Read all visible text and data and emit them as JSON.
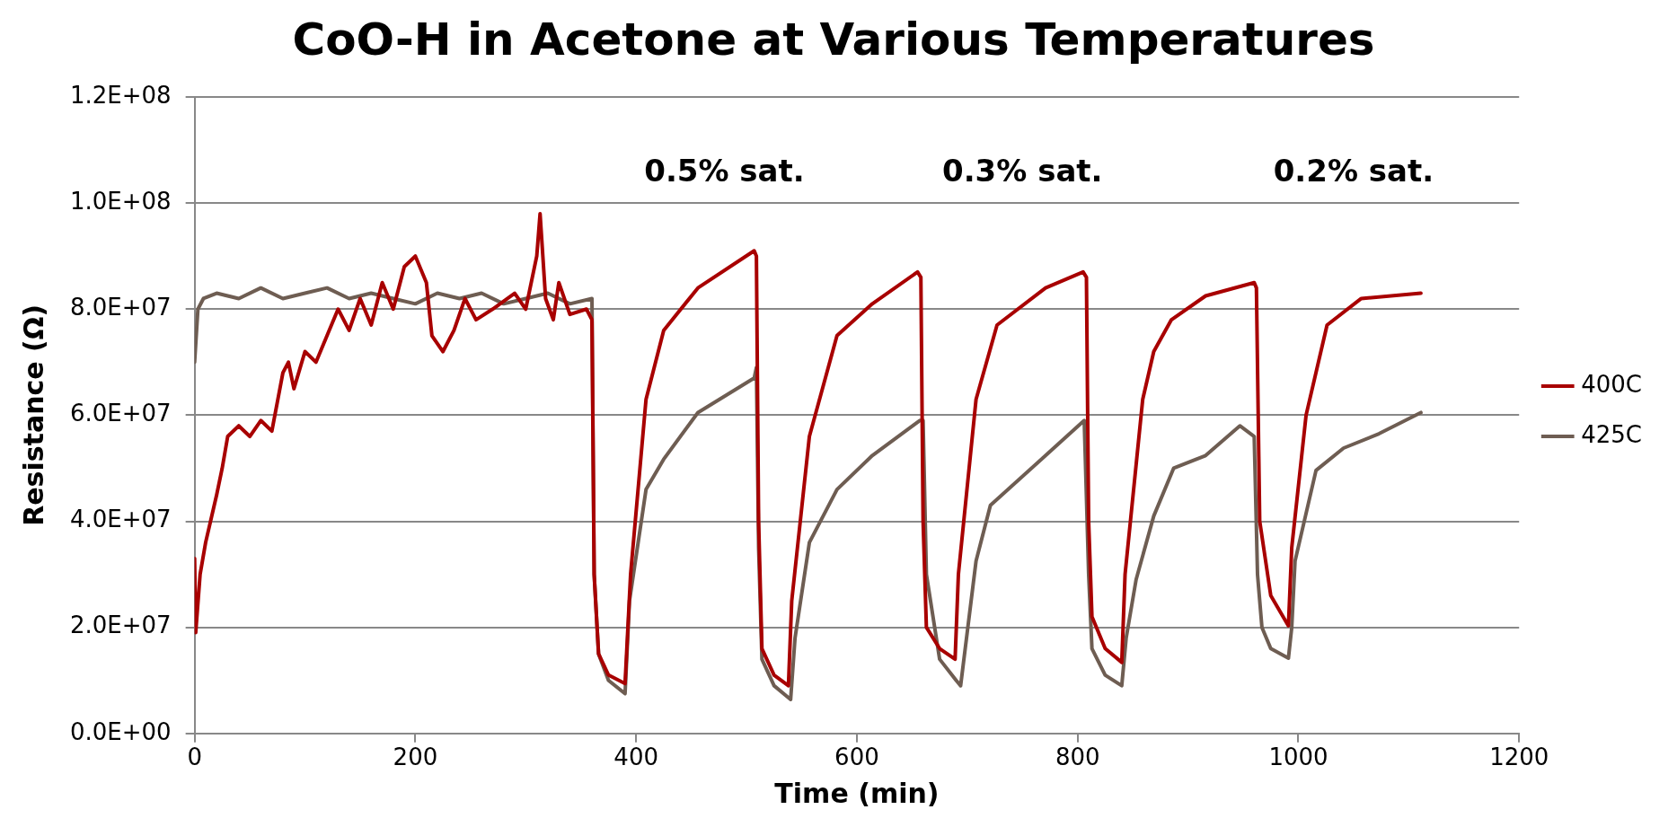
{
  "chart_data": {
    "type": "line",
    "title": "CoO-H in Acetone at Various Temperatures",
    "xlabel": "Time (min)",
    "ylabel": "Resistance (Ω)",
    "xlim": [
      0,
      1200
    ],
    "xticks": [
      0,
      200,
      400,
      600,
      800,
      1000,
      1200
    ],
    "ylim": [
      0,
      120000000.0
    ],
    "yticks": [
      {
        "value": 0,
        "label": "0.0E+00"
      },
      {
        "value": 20000000.0,
        "label": "2.0E+07"
      },
      {
        "value": 40000000.0,
        "label": "4.0E+07"
      },
      {
        "value": 60000000.0,
        "label": "6.0E+07"
      },
      {
        "value": 80000000.0,
        "label": "8.0E+07"
      },
      {
        "value": 100000000.0,
        "label": "1.0E+08"
      },
      {
        "value": 120000000.0,
        "label": "1.2E+08"
      }
    ],
    "grid": "y",
    "legend": "right",
    "marker": "none",
    "line_style": "solid",
    "annotations": [
      "0.5% sat.",
      "0.3% sat.",
      "0.2% sat."
    ],
    "series": [
      {
        "name": "400C",
        "color": "#a80000",
        "x": [
          0,
          1,
          5,
          10,
          20,
          25,
          30,
          40,
          50,
          60,
          70,
          80,
          85,
          90,
          100,
          110,
          120,
          130,
          140,
          150,
          160,
          170,
          180,
          190,
          200,
          210,
          215,
          225,
          235,
          245,
          255,
          270,
          290,
          300,
          310,
          313,
          318,
          325,
          330,
          340,
          355,
          360,
          362,
          366,
          375,
          390,
          395,
          409,
          425,
          456,
          507,
          509,
          511,
          514,
          525,
          538,
          541,
          557,
          582,
          614,
          655,
          658,
          660,
          663,
          675,
          689,
          692,
          708,
          727,
          771,
          805,
          808,
          810,
          813,
          825,
          840,
          843,
          859,
          869,
          885,
          916,
          960,
          962,
          965,
          975,
          991,
          994,
          1007,
          1026,
          1057,
          1111
        ],
        "values": [
          33000000.0,
          19000000.0,
          30000000.0,
          36000000.0,
          45000000.0,
          50000000.0,
          56000000.0,
          58000000.0,
          56000000.0,
          59000000.0,
          57000000.0,
          68000000.0,
          70000000.0,
          65000000.0,
          72000000.0,
          70000000.0,
          75000000.0,
          80000000.0,
          76000000.0,
          82000000.0,
          77000000.0,
          85000000.0,
          80000000.0,
          88000000.0,
          90000000.0,
          85000000.0,
          75000000.0,
          72000000.0,
          76000000.0,
          82000000.0,
          78000000.0,
          80000000.0,
          83000000.0,
          80000000.0,
          90000000.0,
          98000000.0,
          82000000.0,
          78000000.0,
          85000000.0,
          79000000.0,
          80000000.0,
          78000000.0,
          30000000.0,
          15000000.0,
          11000000.0,
          9400000.0,
          30000000.0,
          63000000.0,
          76000000.0,
          84000000.0,
          91000000.0,
          90000000.0,
          40000000.0,
          16000000.0,
          11000000.0,
          9000000.0,
          25000000.0,
          56000000.0,
          75000000.0,
          81000000.0,
          87000000.0,
          86000000.0,
          40000000.0,
          20000000.0,
          16000000.0,
          14000000.0,
          30000000.0,
          63000000.0,
          77000000.0,
          84000000.0,
          87000000.0,
          86000000.0,
          40000000.0,
          22000000.0,
          16000000.0,
          13400000.0,
          30000000.0,
          63000000.0,
          72000000.0,
          78000000.0,
          82500000.0,
          85000000.0,
          84000000.0,
          40000000.0,
          26000000.0,
          20300000.0,
          35000000.0,
          60000000.0,
          77000000.0,
          82000000.0,
          83000000.0
        ]
      },
      {
        "name": "425C",
        "color": "#6e5d52",
        "x": [
          0,
          3,
          8,
          20,
          40,
          60,
          80,
          100,
          120,
          140,
          160,
          180,
          200,
          220,
          240,
          260,
          280,
          300,
          320,
          340,
          360,
          362,
          366,
          375,
          390,
          394,
          409,
          425,
          456,
          507,
          509,
          511,
          514,
          525,
          540,
          544,
          557,
          582,
          614,
          657,
          660,
          663,
          675,
          690,
          694,
          708,
          721,
          771,
          806,
          810,
          813,
          825,
          840,
          844,
          853,
          869,
          887,
          916,
          947,
          960,
          963,
          967,
          975,
          991,
          994,
          997,
          1016,
          1041,
          1073,
          1111
        ],
        "values": [
          70000000.0,
          80000000.0,
          82000000.0,
          83000000.0,
          82000000.0,
          84000000.0,
          82000000.0,
          83000000.0,
          84000000.0,
          82000000.0,
          83000000.0,
          82000000.0,
          81000000.0,
          83000000.0,
          82000000.0,
          83000000.0,
          81000000.0,
          82000000.0,
          83000000.0,
          81000000.0,
          82000000.0,
          30000000.0,
          15000000.0,
          10000000.0,
          7500000.0,
          25000000.0,
          46000000.0,
          51700000.0,
          60500000.0,
          67000000.0,
          69000000.0,
          35000000.0,
          14000000.0,
          9000000.0,
          6400000.0,
          18000000.0,
          36000000.0,
          46000000.0,
          52400000.0,
          59000000.0,
          59000000.0,
          30000000.0,
          14000000.0,
          10000000.0,
          9000000.0,
          32500000.0,
          43000000.0,
          52400000.0,
          59000000.0,
          30000000.0,
          16000000.0,
          11000000.0,
          9000000.0,
          18000000.0,
          29000000.0,
          41000000.0,
          50000000.0,
          52400000.0,
          58000000.0,
          56000000.0,
          30000000.0,
          20000000.0,
          16000000.0,
          14200000.0,
          20000000.0,
          32500000.0,
          49600000.0,
          53800000.0,
          56500000.0,
          60500000.0
        ]
      }
    ]
  }
}
